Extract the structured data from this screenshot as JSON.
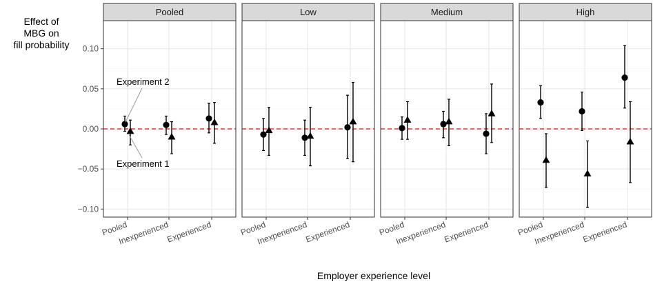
{
  "chart_data": {
    "type": "scatter",
    "ylabel": "Effect of MBG on fill probability",
    "ylabel_lines": [
      "Effect of",
      "MBG on",
      "fill probability"
    ],
    "xlabel": "Employer experience level",
    "ylim": [
      -0.11,
      0.135
    ],
    "y_ticks": [
      0.1,
      0.05,
      0.0,
      -0.05,
      -0.1
    ],
    "y_tick_labels": [
      "0.10",
      "0.05",
      "0.00",
      "−0.05",
      "−0.10"
    ],
    "categories": [
      "Pooled",
      "Inexperienced",
      "Experienced"
    ],
    "panels": [
      {
        "title": "Pooled",
        "series": [
          {
            "name": "Experiment 2",
            "marker": "circle",
            "points": [
              {
                "category": "Pooled",
                "y": 0.006,
                "lo": -0.003,
                "hi": 0.016
              },
              {
                "category": "Inexperienced",
                "y": 0.005,
                "lo": -0.007,
                "hi": 0.016
              },
              {
                "category": "Experienced",
                "y": 0.013,
                "lo": -0.005,
                "hi": 0.032
              }
            ]
          },
          {
            "name": "Experiment 1",
            "marker": "triangle",
            "points": [
              {
                "category": "Pooled",
                "y": -0.003,
                "lo": -0.02,
                "hi": 0.011
              },
              {
                "category": "Inexperienced",
                "y": -0.01,
                "lo": -0.031,
                "hi": 0.009
              },
              {
                "category": "Experienced",
                "y": 0.008,
                "lo": -0.018,
                "hi": 0.033
              }
            ]
          }
        ]
      },
      {
        "title": "Low",
        "series": [
          {
            "name": "Experiment 2",
            "marker": "circle",
            "points": [
              {
                "category": "Pooled",
                "y": -0.007,
                "lo": -0.027,
                "hi": 0.013
              },
              {
                "category": "Inexperienced",
                "y": -0.011,
                "lo": -0.033,
                "hi": 0.011
              },
              {
                "category": "Experienced",
                "y": 0.002,
                "lo": -0.037,
                "hi": 0.042
              }
            ]
          },
          {
            "name": "Experiment 1",
            "marker": "triangle",
            "points": [
              {
                "category": "Pooled",
                "y": -0.002,
                "lo": -0.033,
                "hi": 0.027
              },
              {
                "category": "Inexperienced",
                "y": -0.009,
                "lo": -0.046,
                "hi": 0.027
              },
              {
                "category": "Experienced",
                "y": 0.009,
                "lo": -0.041,
                "hi": 0.058
              }
            ]
          }
        ]
      },
      {
        "title": "Medium",
        "series": [
          {
            "name": "Experiment 2",
            "marker": "circle",
            "points": [
              {
                "category": "Pooled",
                "y": 0.001,
                "lo": -0.013,
                "hi": 0.015
              },
              {
                "category": "Inexperienced",
                "y": 0.006,
                "lo": -0.011,
                "hi": 0.022
              },
              {
                "category": "Experienced",
                "y": -0.006,
                "lo": -0.031,
                "hi": 0.019
              }
            ]
          },
          {
            "name": "Experiment 1",
            "marker": "triangle",
            "points": [
              {
                "category": "Pooled",
                "y": 0.011,
                "lo": -0.013,
                "hi": 0.034
              },
              {
                "category": "Inexperienced",
                "y": 0.009,
                "lo": -0.021,
                "hi": 0.037
              },
              {
                "category": "Experienced",
                "y": 0.019,
                "lo": -0.017,
                "hi": 0.056
              }
            ]
          }
        ]
      },
      {
        "title": "High",
        "series": [
          {
            "name": "Experiment 2",
            "marker": "circle",
            "points": [
              {
                "category": "Pooled",
                "y": 0.033,
                "lo": 0.013,
                "hi": 0.054
              },
              {
                "category": "Inexperienced",
                "y": 0.022,
                "lo": -0.002,
                "hi": 0.046
              },
              {
                "category": "Experienced",
                "y": 0.064,
                "lo": 0.026,
                "hi": 0.104
              }
            ]
          },
          {
            "name": "Experiment 1",
            "marker": "triangle",
            "points": [
              {
                "category": "Pooled",
                "y": -0.039,
                "lo": -0.073,
                "hi": -0.006
              },
              {
                "category": "Inexperienced",
                "y": -0.056,
                "lo": -0.098,
                "hi": -0.015
              },
              {
                "category": "Experienced",
                "y": -0.016,
                "lo": -0.067,
                "hi": 0.034
              }
            ]
          }
        ]
      }
    ],
    "reference_line": {
      "y": 0.0,
      "style": "dashed",
      "color": "#e41a1c"
    },
    "annotations": [
      "Experiment 2",
      "Experiment 1"
    ],
    "grid": true
  }
}
